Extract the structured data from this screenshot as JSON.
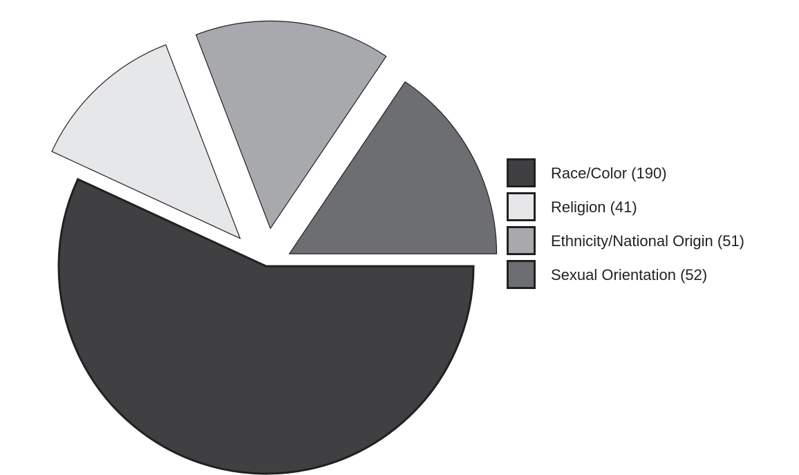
{
  "chart_data": {
    "type": "pie",
    "exploded": true,
    "legend_position": "right",
    "slices": [
      {
        "label": "Race/Color (190)",
        "category": "Race/Color",
        "value": 190,
        "color": "#404042"
      },
      {
        "label": "Religion (41)",
        "category": "Religion",
        "value": 41,
        "color": "#e6e7e8"
      },
      {
        "label": "Ethnicity/National Origin (51)",
        "category": "Ethnicity/National Origin",
        "value": 51,
        "color": "#a7a9ac"
      },
      {
        "label": "Sexual Orientation (52)",
        "category": "Sexual Orientation",
        "value": 52,
        "color": "#6d6e71"
      }
    ],
    "stroke_color": "#231f20"
  }
}
